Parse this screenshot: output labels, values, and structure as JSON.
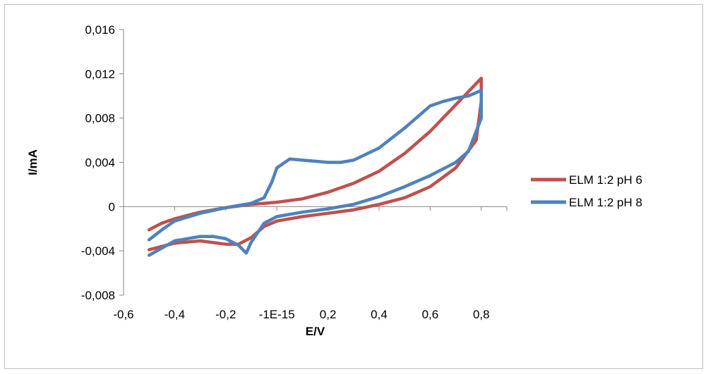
{
  "chart_data": {
    "type": "line",
    "title": "",
    "xlabel": "E/V",
    "ylabel": "I/mA",
    "xlim": [
      -0.6,
      0.9
    ],
    "ylim": [
      -0.008,
      0.016
    ],
    "x_ticks": [
      -0.6,
      -0.4,
      -0.2,
      0,
      0.2,
      0.4,
      0.6,
      0.8
    ],
    "x_tick_labels": [
      "-0,6",
      "-0,4",
      "-0,2",
      "-1E-15",
      "0,2",
      "0,4",
      "0,6",
      "0,8"
    ],
    "y_ticks": [
      -0.008,
      -0.004,
      0,
      0.004,
      0.008,
      0.012,
      0.016
    ],
    "y_tick_labels": [
      "-0,008",
      "-0,004",
      "0",
      "0,004",
      "0,008",
      "0,012",
      "0,016"
    ],
    "grid": false,
    "legend_position": "right",
    "series": [
      {
        "name": "ELM 1:2 pH 6",
        "color": "#c0504d",
        "x": [
          -0.5,
          -0.45,
          -0.4,
          -0.3,
          -0.2,
          -0.1,
          0.0,
          0.1,
          0.2,
          0.3,
          0.4,
          0.5,
          0.6,
          0.7,
          0.75,
          0.8,
          0.8,
          0.78,
          0.7,
          0.6,
          0.5,
          0.4,
          0.3,
          0.2,
          0.1,
          0.0,
          -0.05,
          -0.1,
          -0.15,
          -0.2,
          -0.3,
          -0.4,
          -0.5
        ],
        "y": [
          -0.0021,
          -0.0015,
          -0.0011,
          -0.0005,
          -0.0001,
          0.0002,
          0.0004,
          0.0007,
          0.0013,
          0.0021,
          0.0032,
          0.0048,
          0.0068,
          0.0092,
          0.0104,
          0.0116,
          0.0095,
          0.006,
          0.0035,
          0.0018,
          0.0008,
          0.0002,
          -0.0003,
          -0.0006,
          -0.0009,
          -0.0013,
          -0.0018,
          -0.0028,
          -0.0034,
          -0.0034,
          -0.0031,
          -0.0033,
          -0.0039
        ]
      },
      {
        "name": "ELM 1:2 pH 8",
        "color": "#4f81bd",
        "x": [
          -0.5,
          -0.45,
          -0.4,
          -0.3,
          -0.2,
          -0.1,
          -0.05,
          -0.02,
          0.0,
          0.05,
          0.1,
          0.15,
          0.2,
          0.25,
          0.3,
          0.4,
          0.5,
          0.6,
          0.65,
          0.7,
          0.75,
          0.8,
          0.8,
          0.75,
          0.7,
          0.6,
          0.5,
          0.4,
          0.3,
          0.2,
          0.1,
          0.0,
          -0.05,
          -0.1,
          -0.12,
          -0.15,
          -0.2,
          -0.25,
          -0.3,
          -0.4,
          -0.5
        ],
        "y": [
          -0.003,
          -0.0021,
          -0.0013,
          -0.0006,
          -0.0001,
          0.0003,
          0.0008,
          0.0022,
          0.0035,
          0.0043,
          0.0042,
          0.0041,
          0.004,
          0.004,
          0.0042,
          0.0053,
          0.0071,
          0.0091,
          0.0095,
          0.0098,
          0.01,
          0.0105,
          0.008,
          0.005,
          0.004,
          0.0028,
          0.0018,
          0.0009,
          0.0002,
          -0.0002,
          -0.0005,
          -0.0009,
          -0.0015,
          -0.0032,
          -0.0042,
          -0.0035,
          -0.0029,
          -0.0027,
          -0.0027,
          -0.0031,
          -0.0044
        ]
      }
    ]
  }
}
